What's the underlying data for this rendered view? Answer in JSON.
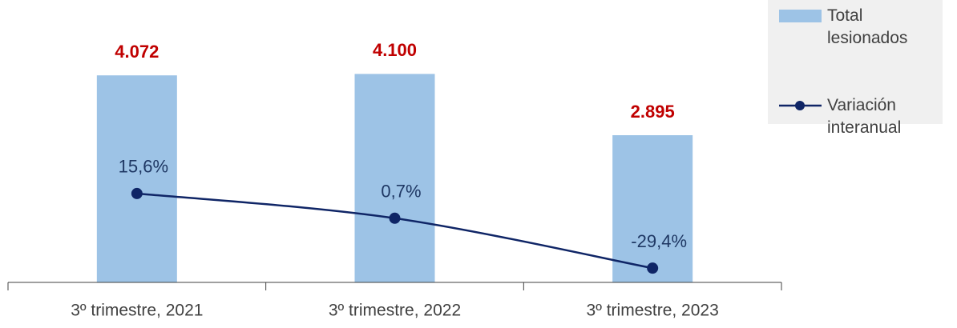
{
  "chart_data": {
    "type": "bar-line",
    "categories": [
      "3º trimestre, 2021",
      "3º trimestre, 2022",
      "3º trimestre, 2023"
    ],
    "series": [
      {
        "name": "Total lesionados",
        "type": "bar",
        "color": "#9dc3e6",
        "values": [
          4072,
          4100,
          2895
        ],
        "value_labels": [
          "4.072",
          "4.100",
          "2.895"
        ],
        "label_color": "#c00000"
      },
      {
        "name": "Variación interanual",
        "type": "line",
        "axis": "y2",
        "color": "#0f2566",
        "values": [
          15.6,
          0.7,
          -29.4
        ],
        "value_labels": [
          "15,6%",
          "0,7%",
          "-29,4%"
        ],
        "label_color": "#1f3864"
      }
    ],
    "ylim": [
      0,
      4500
    ],
    "y2lim": [
      -38,
      100
    ],
    "legend": "top-right"
  }
}
